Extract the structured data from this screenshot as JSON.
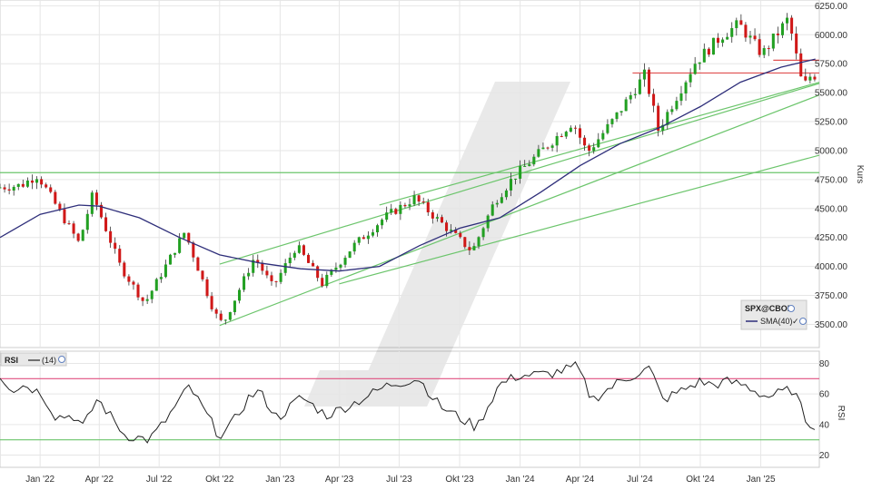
{
  "chart_data": {
    "type": "candlestick",
    "instrument": "SPX@CBOE",
    "price_axis": {
      "label": "Kurs",
      "ticks": [
        3500,
        3750,
        4000,
        4250,
        4500,
        4750,
        5000,
        5250,
        5500,
        5750,
        6000,
        6250
      ],
      "tick_labels": [
        "3500.00",
        "3750.00",
        "4000.00",
        "4250.00",
        "4500.00",
        "4750.00",
        "5000.00",
        "5250.00",
        "5500.00",
        "5750.00",
        "6000.00",
        "6250.00"
      ],
      "range": [
        3300,
        6300
      ]
    },
    "x_axis": {
      "start": "2021-11-01",
      "end": "2025-03-31",
      "tick_dates": [
        "2022-01-01",
        "2022-04-01",
        "2022-07-01",
        "2022-10-01",
        "2023-01-01",
        "2023-04-01",
        "2023-07-01",
        "2023-10-01",
        "2024-01-01",
        "2024-04-01",
        "2024-07-01",
        "2024-10-01",
        "2025-01-01"
      ],
      "tick_labels": [
        "Jan '22",
        "Apr '22",
        "Jul '22",
        "Okt '22",
        "Jan '23",
        "Apr '23",
        "Jul '23",
        "Okt '23",
        "Jan '24",
        "Apr '24",
        "Jul '24",
        "Okt '24",
        "Jan '25"
      ]
    },
    "candle_colors": {
      "up": "#22a022",
      "down": "#d01818",
      "wick": "#333333"
    },
    "price_anchors": [
      [
        "2021-11-01",
        4680
      ],
      [
        "2021-12-10",
        4700
      ],
      [
        "2022-01-04",
        4790
      ],
      [
        "2022-02-20",
        4350
      ],
      [
        "2022-03-08",
        4200
      ],
      [
        "2022-03-29",
        4620
      ],
      [
        "2022-05-10",
        4000
      ],
      [
        "2022-06-16",
        3680
      ],
      [
        "2022-08-16",
        4300
      ],
      [
        "2022-09-30",
        3600
      ],
      [
        "2022-10-13",
        3500
      ],
      [
        "2022-11-30",
        4080
      ],
      [
        "2022-12-28",
        3820
      ],
      [
        "2023-02-02",
        4180
      ],
      [
        "2023-03-13",
        3850
      ],
      [
        "2023-04-28",
        4170
      ],
      [
        "2023-06-15",
        4420
      ],
      [
        "2023-07-31",
        4590
      ],
      [
        "2023-10-27",
        4130
      ],
      [
        "2023-11-30",
        4560
      ],
      [
        "2023-12-29",
        4770
      ],
      [
        "2024-03-28",
        5250
      ],
      [
        "2024-04-19",
        4980
      ],
      [
        "2024-05-31",
        5280
      ],
      [
        "2024-07-16",
        5660
      ],
      [
        "2024-08-05",
        5180
      ],
      [
        "2024-09-30",
        5760
      ],
      [
        "2024-11-11",
        6000
      ],
      [
        "2024-12-06",
        6090
      ],
      [
        "2025-01-10",
        5830
      ],
      [
        "2025-02-19",
        6140
      ],
      [
        "2025-03-13",
        5540
      ],
      [
        "2025-03-25",
        5650
      ]
    ],
    "sma": {
      "name": "SMA(40)",
      "color": "#2e2e7a",
      "points": [
        [
          "2021-11-01",
          4250
        ],
        [
          "2022-01-01",
          4450
        ],
        [
          "2022-03-01",
          4530
        ],
        [
          "2022-04-01",
          4520
        ],
        [
          "2022-06-01",
          4420
        ],
        [
          "2022-08-01",
          4250
        ],
        [
          "2022-10-01",
          4100
        ],
        [
          "2022-12-01",
          4030
        ],
        [
          "2023-02-01",
          3980
        ],
        [
          "2023-04-01",
          3960
        ],
        [
          "2023-06-01",
          4000
        ],
        [
          "2023-08-01",
          4180
        ],
        [
          "2023-10-01",
          4330
        ],
        [
          "2023-12-01",
          4420
        ],
        [
          "2024-02-01",
          4640
        ],
        [
          "2024-04-01",
          4870
        ],
        [
          "2024-06-01",
          5060
        ],
        [
          "2024-08-01",
          5200
        ],
        [
          "2024-10-01",
          5380
        ],
        [
          "2024-12-01",
          5590
        ],
        [
          "2025-02-01",
          5720
        ],
        [
          "2025-03-25",
          5790
        ]
      ]
    },
    "horizontal_lines": [
      {
        "value": 4810,
        "from": "2021-11-01",
        "to": "2025-03-31",
        "color": "#6cc56c"
      },
      {
        "value": 5670,
        "from": "2024-06-20",
        "to": "2025-03-31",
        "color": "#e05050"
      },
      {
        "value": 5780,
        "from": "2025-01-20",
        "to": "2025-03-31",
        "color": "#e05050"
      }
    ],
    "trend_lines": [
      {
        "from": [
          "2022-10-01",
          4020
        ],
        "to": [
          "2025-03-31",
          5580
        ],
        "color": "#6cc56c"
      },
      {
        "from": [
          "2022-10-01",
          3490
        ],
        "to": [
          "2025-03-31",
          5480
        ],
        "color": "#6cc56c"
      },
      {
        "from": [
          "2023-06-01",
          4530
        ],
        "to": [
          "2025-03-31",
          5590
        ],
        "color": "#6cc56c"
      },
      {
        "from": [
          "2023-04-01",
          3850
        ],
        "to": [
          "2025-03-31",
          4960
        ],
        "color": "#6cc56c"
      }
    ],
    "rsi": {
      "name": "RSI",
      "period_label": "(14)",
      "ticks": [
        20,
        40,
        60,
        80
      ],
      "range": [
        12,
        88
      ],
      "upper_band": 70,
      "lower_band": 30,
      "upper_color": "#e05080",
      "lower_color": "#6cc56c",
      "line_color": "#222222",
      "axis_label": "RSI",
      "points": [
        [
          "2021-11-01",
          72
        ],
        [
          "2021-11-20",
          63
        ],
        [
          "2021-12-10",
          66
        ],
        [
          "2022-01-04",
          60
        ],
        [
          "2022-01-25",
          45
        ],
        [
          "2022-02-20",
          46
        ],
        [
          "2022-03-08",
          38
        ],
        [
          "2022-03-29",
          57
        ],
        [
          "2022-05-10",
          33
        ],
        [
          "2022-06-16",
          30
        ],
        [
          "2022-07-10",
          42
        ],
        [
          "2022-08-16",
          65
        ],
        [
          "2022-09-30",
          33
        ],
        [
          "2022-10-13",
          36
        ],
        [
          "2022-11-15",
          58
        ],
        [
          "2022-11-30",
          62
        ],
        [
          "2022-12-28",
          44
        ],
        [
          "2023-02-02",
          58
        ],
        [
          "2023-03-13",
          46
        ],
        [
          "2023-04-28",
          55
        ],
        [
          "2023-06-15",
          66
        ],
        [
          "2023-07-31",
          70
        ],
        [
          "2023-09-01",
          52
        ],
        [
          "2023-10-27",
          38
        ],
        [
          "2023-11-30",
          66
        ],
        [
          "2023-12-29",
          72
        ],
        [
          "2024-02-15",
          73
        ],
        [
          "2024-03-28",
          78
        ],
        [
          "2024-04-19",
          56
        ],
        [
          "2024-05-31",
          68
        ],
        [
          "2024-07-16",
          77
        ],
        [
          "2024-08-05",
          56
        ],
        [
          "2024-09-30",
          68
        ],
        [
          "2024-10-20",
          66
        ],
        [
          "2024-11-11",
          68
        ],
        [
          "2024-12-06",
          66
        ],
        [
          "2025-01-10",
          58
        ],
        [
          "2025-02-19",
          63
        ],
        [
          "2025-03-13",
          41
        ],
        [
          "2025-03-25",
          40
        ]
      ]
    }
  },
  "legend": {
    "instrument": "SPX@CBOE",
    "indicator": "SMA(40)"
  },
  "rsi_legend": {
    "name": "RSI",
    "period": "(14)"
  }
}
